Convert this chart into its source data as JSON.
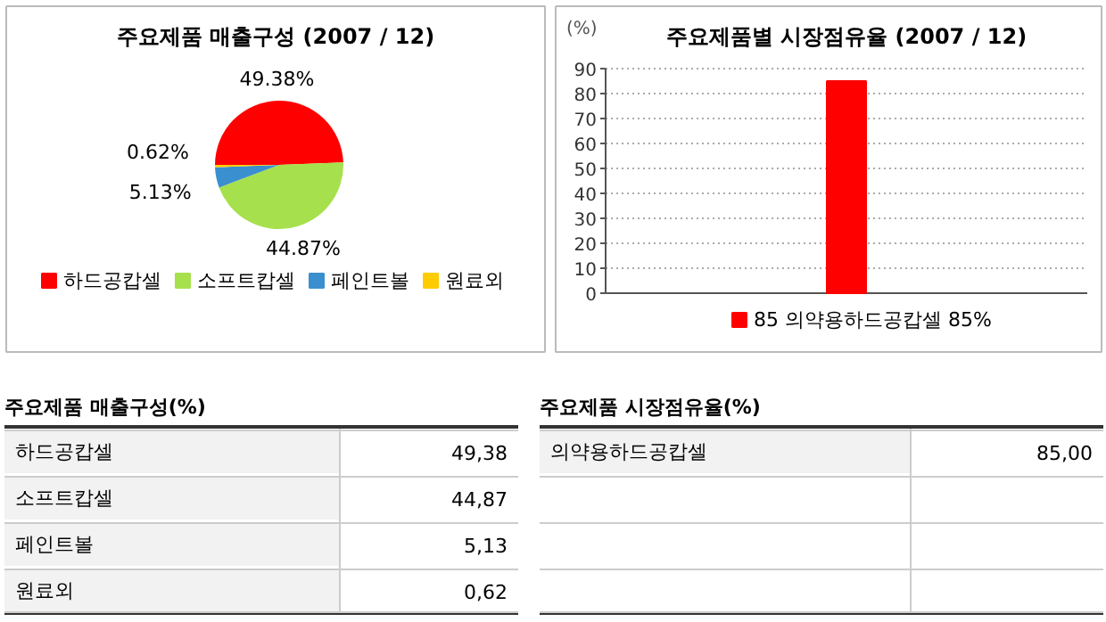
{
  "chart_data": [
    {
      "type": "pie",
      "title": "주요제품 매출구성 (2007 / 12)",
      "categories": [
        "하드공캅셀",
        "소프트캅셀",
        "페인트볼",
        "원료외"
      ],
      "values": [
        49.38,
        44.87,
        5.13,
        0.62
      ],
      "colors": [
        "#ff0000",
        "#a6e04c",
        "#3a8fcf",
        "#ffcc00"
      ],
      "value_labels": [
        "49.38%",
        "44.87%",
        "5.13%",
        "0.62%"
      ],
      "legend": "bottom"
    },
    {
      "type": "bar",
      "title": "주요제품별 시장점유율 (2007 / 12)",
      "ylabel": "(%)",
      "categories": [
        null
      ],
      "series": [
        {
          "name": "85 의약용하드공캅셀 85%",
          "color": "#ff0000",
          "values": [
            85
          ]
        }
      ],
      "ylim": [
        0,
        90
      ],
      "yticks": [
        0,
        10,
        20,
        30,
        40,
        50,
        60,
        70,
        80,
        90
      ],
      "grid": "y",
      "legend": "bottom"
    },
    {
      "type": "other",
      "title": "주요제품 매출구성(%)",
      "annotations": [
        "하드공캅셀",
        "49,38",
        "소프트캅셀",
        "44,87",
        "페인트볼",
        "5,13",
        "원료외",
        "0,62"
      ]
    },
    {
      "type": "other",
      "title": "주요제품 시장점유율(%)",
      "annotations": [
        "의약용하드공캅셀",
        "85,00"
      ]
    }
  ]
}
